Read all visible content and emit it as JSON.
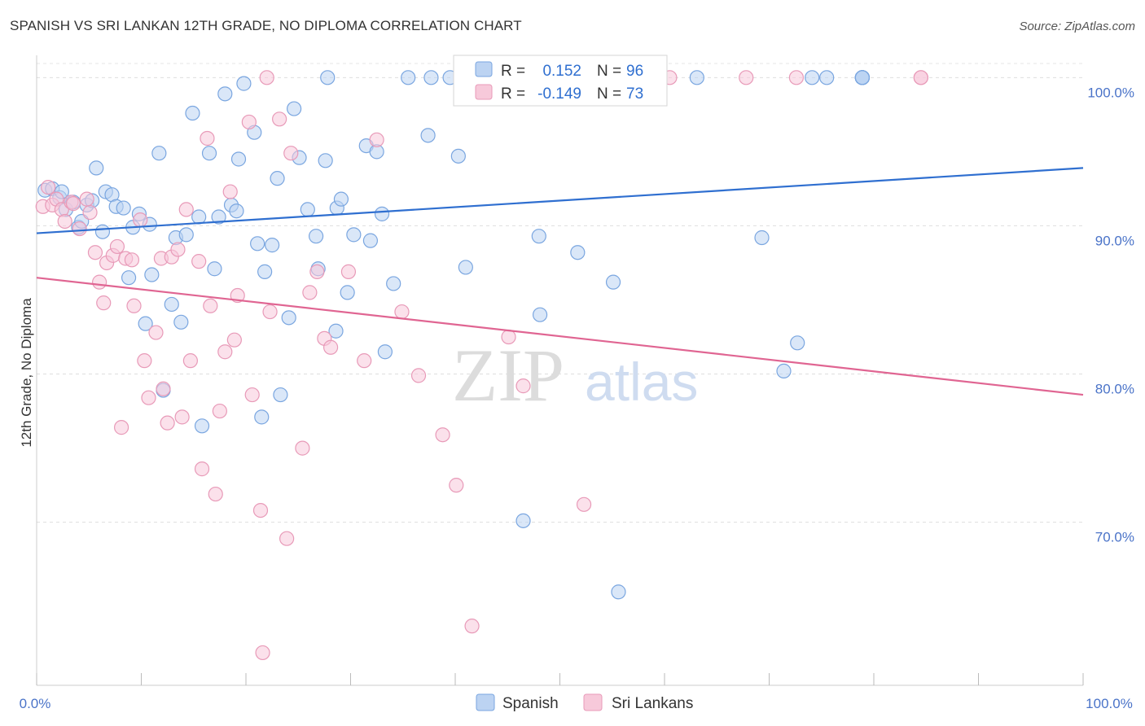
{
  "header": {
    "title": "SPANISH VS SRI LANKAN 12TH GRADE, NO DIPLOMA CORRELATION CHART",
    "source": "Source: ZipAtlas.com"
  },
  "chart_data": {
    "type": "scatter",
    "ylabel": "12th Grade, No Diploma",
    "xlim": [
      0,
      100
    ],
    "ylim": [
      59,
      101.5
    ],
    "x_tick_labels": [
      "0.0%",
      "100.0%"
    ],
    "y_ticks": [
      {
        "value": 100,
        "label": "100.0%"
      },
      {
        "value": 90,
        "label": "90.0%"
      },
      {
        "value": 80,
        "label": "80.0%"
      },
      {
        "value": 70,
        "label": "70.0%"
      }
    ],
    "grid": "horizontal dashed",
    "legend_position": "top-center",
    "watermark": {
      "part1": "ZIP",
      "part2": "atlas"
    },
    "stats": [
      {
        "r_label": "R =",
        "r_value": "0.152",
        "n_label": "N =",
        "n_value": "96"
      },
      {
        "r_label": "R =",
        "r_value": "-0.149",
        "n_label": "N =",
        "n_value": "73"
      }
    ],
    "series": [
      {
        "name": "Spanish",
        "color": "#7aa6e0",
        "fill": "#bcd3f2",
        "line_color": "#2f6fd0",
        "trend": [
          [
            0,
            89.5
          ],
          [
            100,
            93.9
          ]
        ],
        "points": [
          [
            0.8,
            92.4
          ],
          [
            1.5,
            92.5
          ],
          [
            2.2,
            91.9
          ],
          [
            2.4,
            92.3
          ],
          [
            2.8,
            91.1
          ],
          [
            3.5,
            91.6
          ],
          [
            4.0,
            89.9
          ],
          [
            4.3,
            90.3
          ],
          [
            4.8,
            91.4
          ],
          [
            5.3,
            91.7
          ],
          [
            5.7,
            93.9
          ],
          [
            6.3,
            89.6
          ],
          [
            6.6,
            92.3
          ],
          [
            7.2,
            92.1
          ],
          [
            7.6,
            91.3
          ],
          [
            8.3,
            91.2
          ],
          [
            8.8,
            86.5
          ],
          [
            9.2,
            89.9
          ],
          [
            9.8,
            90.8
          ],
          [
            10.4,
            83.4
          ],
          [
            10.8,
            90.1
          ],
          [
            11.0,
            86.7
          ],
          [
            11.7,
            94.9
          ],
          [
            12.1,
            78.9
          ],
          [
            12.9,
            84.7
          ],
          [
            13.3,
            89.2
          ],
          [
            13.8,
            83.5
          ],
          [
            14.3,
            89.4
          ],
          [
            14.9,
            97.6
          ],
          [
            15.5,
            90.6
          ],
          [
            15.8,
            76.5
          ],
          [
            16.5,
            94.9
          ],
          [
            17.0,
            87.1
          ],
          [
            17.4,
            90.6
          ],
          [
            18.0,
            98.9
          ],
          [
            18.6,
            91.4
          ],
          [
            19.1,
            91.0
          ],
          [
            19.3,
            94.5
          ],
          [
            19.8,
            99.6
          ],
          [
            20.8,
            96.3
          ],
          [
            21.1,
            88.8
          ],
          [
            21.5,
            77.1
          ],
          [
            21.8,
            86.9
          ],
          [
            22.5,
            88.7
          ],
          [
            23.0,
            93.2
          ],
          [
            23.3,
            78.6
          ],
          [
            24.1,
            83.8
          ],
          [
            24.6,
            97.9
          ],
          [
            25.1,
            94.6
          ],
          [
            25.9,
            91.1
          ],
          [
            26.7,
            89.3
          ],
          [
            26.9,
            87.1
          ],
          [
            27.6,
            94.4
          ],
          [
            27.8,
            100.0
          ],
          [
            28.6,
            82.9
          ],
          [
            28.7,
            91.2
          ],
          [
            29.1,
            91.8
          ],
          [
            29.7,
            85.5
          ],
          [
            30.3,
            89.4
          ],
          [
            31.5,
            95.4
          ],
          [
            31.9,
            89.0
          ],
          [
            32.5,
            95.0
          ],
          [
            33.0,
            90.8
          ],
          [
            33.3,
            81.5
          ],
          [
            34.1,
            86.1
          ],
          [
            35.5,
            100.0
          ],
          [
            37.4,
            96.1
          ],
          [
            37.7,
            100.0
          ],
          [
            39.5,
            100.0
          ],
          [
            40.3,
            94.7
          ],
          [
            41.0,
            87.2
          ],
          [
            43.1,
            100.0
          ],
          [
            46.5,
            70.1
          ],
          [
            48.0,
            89.3
          ],
          [
            48.1,
            84.0
          ],
          [
            51.7,
            88.2
          ],
          [
            52.1,
            100.0
          ],
          [
            54.6,
            100.0
          ],
          [
            55.1,
            86.2
          ],
          [
            55.6,
            65.3
          ],
          [
            56.2,
            100.0
          ],
          [
            63.1,
            100.0
          ],
          [
            69.3,
            89.2
          ],
          [
            71.4,
            80.2
          ],
          [
            72.7,
            82.1
          ],
          [
            74.1,
            100.0
          ],
          [
            75.5,
            100.0
          ],
          [
            78.9,
            100.0
          ],
          [
            78.9,
            100.0
          ],
          [
            78.9,
            100.0
          ],
          [
            78.9,
            100.0
          ],
          [
            78.9,
            100.0
          ],
          [
            78.9,
            100.0
          ],
          [
            78.9,
            100.0
          ],
          [
            78.9,
            100.0
          ],
          [
            78.9,
            100.0
          ],
          [
            78.9,
            100.0
          ],
          [
            78.9,
            100.0
          ]
        ]
      },
      {
        "name": "Sri Lankans",
        "color": "#e89ab8",
        "fill": "#f7c9da",
        "line_color": "#e06592",
        "trend": [
          [
            0,
            86.5
          ],
          [
            100,
            78.6
          ]
        ],
        "points": [
          [
            0.6,
            91.3
          ],
          [
            1.1,
            92.6
          ],
          [
            1.5,
            91.4
          ],
          [
            1.9,
            91.8
          ],
          [
            2.4,
            91.1
          ],
          [
            2.7,
            90.3
          ],
          [
            3.3,
            91.6
          ],
          [
            3.5,
            91.5
          ],
          [
            4.1,
            89.8
          ],
          [
            4.8,
            91.8
          ],
          [
            5.1,
            90.9
          ],
          [
            5.6,
            88.2
          ],
          [
            6.0,
            86.2
          ],
          [
            6.4,
            84.8
          ],
          [
            6.7,
            87.5
          ],
          [
            7.3,
            88.0
          ],
          [
            7.7,
            88.6
          ],
          [
            8.1,
            76.4
          ],
          [
            8.5,
            87.8
          ],
          [
            9.1,
            87.7
          ],
          [
            9.3,
            84.6
          ],
          [
            9.9,
            90.4
          ],
          [
            10.3,
            80.9
          ],
          [
            10.7,
            78.4
          ],
          [
            11.4,
            82.8
          ],
          [
            11.9,
            87.8
          ],
          [
            12.1,
            79.0
          ],
          [
            12.5,
            76.7
          ],
          [
            12.9,
            87.9
          ],
          [
            13.5,
            88.4
          ],
          [
            13.9,
            77.1
          ],
          [
            14.3,
            91.1
          ],
          [
            14.7,
            80.9
          ],
          [
            15.5,
            87.6
          ],
          [
            15.8,
            73.6
          ],
          [
            16.3,
            95.9
          ],
          [
            16.6,
            84.6
          ],
          [
            17.1,
            71.9
          ],
          [
            17.5,
            77.5
          ],
          [
            18.0,
            81.5
          ],
          [
            18.5,
            92.3
          ],
          [
            18.9,
            82.3
          ],
          [
            19.2,
            85.3
          ],
          [
            20.3,
            97.0
          ],
          [
            20.6,
            78.6
          ],
          [
            21.4,
            70.8
          ],
          [
            21.6,
            61.2
          ],
          [
            22.0,
            100.0
          ],
          [
            22.3,
            84.2
          ],
          [
            23.2,
            97.2
          ],
          [
            23.9,
            68.9
          ],
          [
            24.3,
            94.9
          ],
          [
            25.4,
            75.0
          ],
          [
            26.1,
            85.5
          ],
          [
            26.8,
            86.9
          ],
          [
            27.5,
            82.4
          ],
          [
            28.1,
            81.8
          ],
          [
            29.8,
            86.9
          ],
          [
            31.3,
            80.9
          ],
          [
            32.5,
            95.8
          ],
          [
            34.9,
            84.2
          ],
          [
            36.5,
            79.9
          ],
          [
            38.8,
            75.9
          ],
          [
            40.1,
            72.5
          ],
          [
            41.6,
            63.0
          ],
          [
            45.1,
            82.5
          ],
          [
            46.5,
            79.2
          ],
          [
            52.3,
            71.2
          ],
          [
            60.5,
            100.0
          ],
          [
            67.8,
            100.0
          ],
          [
            72.6,
            100.0
          ],
          [
            84.5,
            100.0
          ],
          [
            84.5,
            100.0
          ]
        ]
      }
    ]
  }
}
